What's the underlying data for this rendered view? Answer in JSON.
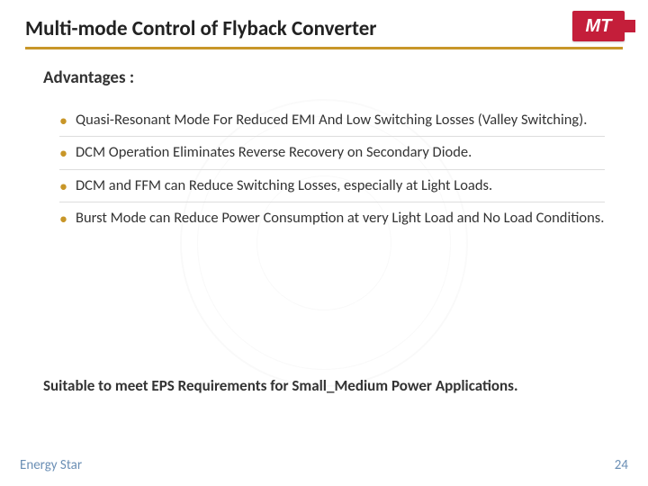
{
  "header": {
    "title": "Multi-mode Control of Flyback Converter",
    "logo_text": "MT",
    "rule_color": "#c89628"
  },
  "content": {
    "subtitle": "Advantages :",
    "bullets": [
      "Quasi-Resonant Mode For Reduced EMI And Low Switching Losses (Valley Switching).",
      "DCM Operation Eliminates Reverse Recovery on Secondary Diode.",
      "DCM and FFM can Reduce Switching Losses, especially at Light Loads.",
      "Burst Mode can Reduce Power Consumption at very Light Load and No Load Conditions."
    ],
    "summary": "Suitable to meet EPS Requirements for Small_Medium Power Applications."
  },
  "footer": {
    "left": "Energy Star",
    "page": "24"
  },
  "colors": {
    "accent": "#c89628",
    "logo_bg": "#c41e3a",
    "footer_text": "#6b8fb5",
    "body_text": "#333333"
  }
}
